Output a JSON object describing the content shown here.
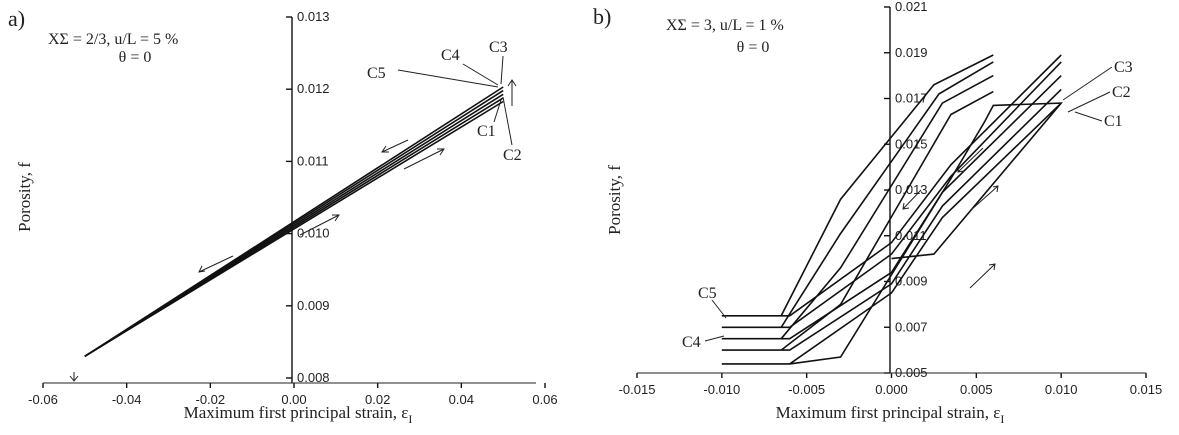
{
  "chart_data": [
    {
      "panel_label": "a)",
      "type": "line",
      "param_line1": "XΣ = 2/3,  u/L = 5 %",
      "param_line2": "θ = 0",
      "xlabel": "Maximum first principal strain, ε",
      "xlabel_sub": "I",
      "ylabel": "Porosity, f",
      "xlim": [
        -0.06,
        0.06
      ],
      "ylim": [
        0.008,
        0.013
      ],
      "xticks": [
        "-0.06",
        "-0.04",
        "-0.02",
        "0.00",
        "0.02",
        "0.04",
        "0.06"
      ],
      "yticks": [
        "0.008",
        "0.009",
        "0.010",
        "0.011",
        "0.012",
        "0.013"
      ],
      "grid": false,
      "series": [
        {
          "name": "C1",
          "x": [
            -0.05,
            0.05
          ],
          "y": [
            0.0083,
            0.01183
          ]
        },
        {
          "name": "C2",
          "x": [
            -0.05,
            0.05
          ],
          "y": [
            0.0083,
            0.01188
          ]
        },
        {
          "name": "C3",
          "x": [
            -0.05,
            0.05
          ],
          "y": [
            0.0083,
            0.01193
          ]
        },
        {
          "name": "C4",
          "x": [
            -0.05,
            0.05
          ],
          "y": [
            0.0083,
            0.01198
          ]
        },
        {
          "name": "C5",
          "x": [
            -0.05,
            0.05
          ],
          "y": [
            0.0083,
            0.01203
          ]
        }
      ]
    },
    {
      "panel_label": "b)",
      "type": "line",
      "param_line1": "XΣ = 3,  u/L = 1 %",
      "param_line2": "θ = 0",
      "xlabel": "Maximum first principal strain, ε",
      "xlabel_sub": "I",
      "ylabel": "Porosity, f",
      "xlim": [
        -0.015,
        0.015
      ],
      "ylim": [
        0.005,
        0.021
      ],
      "xticks": [
        "-0.015",
        "-0.010",
        "-0.005",
        "0.000",
        "0.005",
        "0.010",
        "0.015"
      ],
      "yticks": [
        "0.005",
        "0.007",
        "0.009",
        "0.011",
        "0.013",
        "0.015",
        "0.017",
        "0.019",
        "0.021"
      ],
      "grid": false,
      "series": [
        {
          "name": "C1",
          "x": [
            0.0,
            0.0025,
            0.01,
            0.006,
            0.0055,
            0.0035,
            -0.003,
            -0.006,
            -0.0095,
            -0.01,
            -0.006,
            0.0,
            0.003,
            0.01
          ],
          "y": [
            0.01,
            0.0102,
            0.0168,
            0.0167,
            0.016,
            0.0135,
            0.0057,
            0.0054,
            0.0054,
            0.0054,
            0.0054,
            0.0085,
            0.0118,
            0.0168
          ]
        },
        {
          "name": "C2",
          "x": [
            0.006,
            0.0035,
            -0.003,
            -0.0065,
            -0.0095,
            -0.01,
            -0.006,
            0.0,
            0.003,
            0.01
          ],
          "y": [
            0.0173,
            0.0163,
            0.008,
            0.006,
            0.006,
            0.006,
            0.006,
            0.0089,
            0.0123,
            0.0174
          ]
        },
        {
          "name": "C3",
          "x": [
            0.006,
            0.003,
            -0.003,
            -0.0065,
            -0.0095,
            -0.01,
            -0.006,
            0.0,
            0.003,
            0.01
          ],
          "y": [
            0.018,
            0.0168,
            0.0096,
            0.0065,
            0.0065,
            0.0065,
            0.0065,
            0.0094,
            0.0129,
            0.018
          ]
        },
        {
          "name": "C4",
          "x": [
            0.006,
            0.0028,
            -0.003,
            -0.0065,
            -0.0095,
            -0.01,
            -0.006,
            0.0,
            0.0035,
            0.01
          ],
          "y": [
            0.0186,
            0.0172,
            0.0111,
            0.007,
            0.007,
            0.007,
            0.007,
            0.0102,
            0.0136,
            0.0186
          ]
        },
        {
          "name": "C5",
          "x": [
            0.006,
            0.0025,
            -0.003,
            -0.0065,
            -0.0095,
            -0.01,
            -0.006,
            0.0,
            0.0035,
            0.01
          ],
          "y": [
            0.0189,
            0.0176,
            0.0126,
            0.0075,
            0.0075,
            0.0075,
            0.0075,
            0.0107,
            0.0141,
            0.0189
          ]
        }
      ]
    }
  ]
}
